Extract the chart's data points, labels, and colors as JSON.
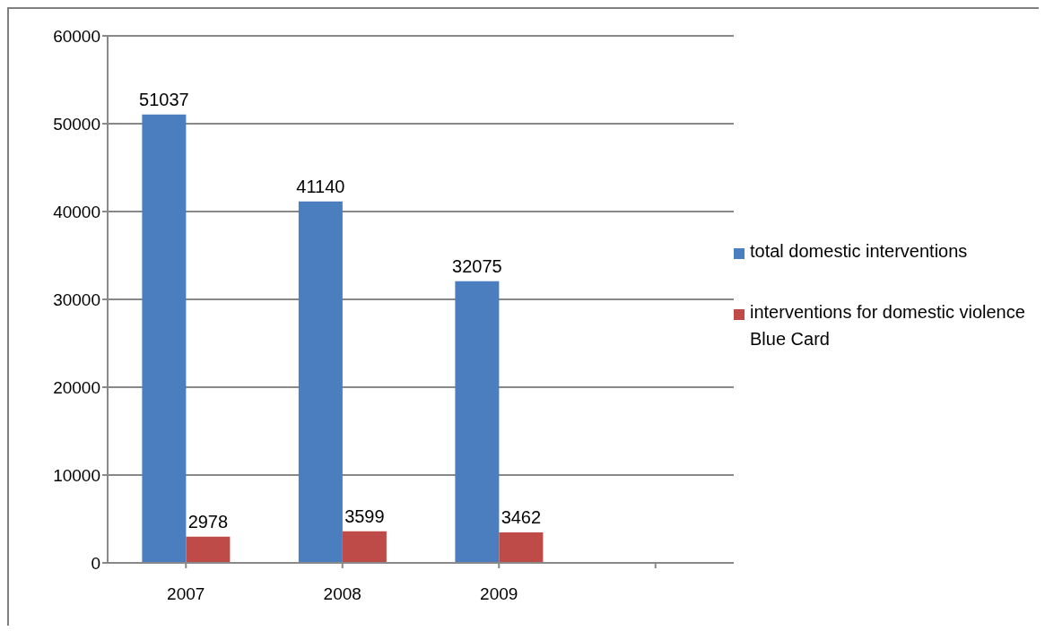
{
  "chart_data": {
    "type": "bar",
    "categories": [
      "2007",
      "2008",
      "2009",
      null
    ],
    "series": [
      {
        "name": "total domestic  interventions",
        "color": "#4a7ebf",
        "values": [
          51037,
          41140,
          32075,
          null
        ]
      },
      {
        "name": "interventions for domestic violence Blue Card",
        "color": "#be4b48",
        "values": [
          2978,
          3599,
          3462,
          null
        ]
      }
    ],
    "ylim": [
      0,
      60000
    ],
    "yticks": [
      0,
      10000,
      20000,
      30000,
      40000,
      50000,
      60000
    ],
    "grid": "y",
    "legend": "right",
    "data_labels": true
  }
}
